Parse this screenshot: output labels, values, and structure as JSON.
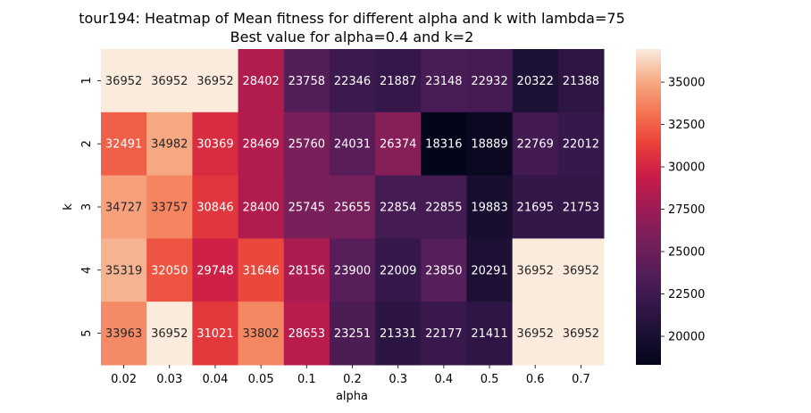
{
  "chart_data": {
    "type": "heatmap",
    "title": "tour194: Heatmap of Mean fitness for different alpha and k with lambda=75",
    "subtitle": "Best value for alpha=0.4 and k=2",
    "xlabel": "alpha",
    "ylabel": "k",
    "x_categories": [
      "0.02",
      "0.03",
      "0.04",
      "0.05",
      "0.1",
      "0.2",
      "0.3",
      "0.4",
      "0.5",
      "0.6",
      "0.7"
    ],
    "y_categories": [
      "1",
      "2",
      "3",
      "4",
      "5"
    ],
    "values": [
      [
        36952,
        36952,
        36952,
        28402,
        23758,
        22346,
        21887,
        23148,
        22932,
        20322,
        21388
      ],
      [
        32491,
        34982,
        30369,
        28469,
        25760,
        24031,
        26374,
        18316,
        18889,
        22769,
        22012
      ],
      [
        34727,
        33757,
        30846,
        28400,
        25745,
        25655,
        22854,
        22855,
        19883,
        21695,
        21753
      ],
      [
        35319,
        32050,
        29748,
        31646,
        28156,
        23900,
        22009,
        23850,
        20291,
        36952,
        36952
      ],
      [
        33963,
        36952,
        31021,
        33802,
        28653,
        23251,
        21331,
        22177,
        21411,
        36952,
        36952
      ]
    ],
    "colorbar": {
      "colormap": "rocket",
      "vmin": 18316,
      "vmax": 36952,
      "ticks": [
        "35000",
        "32500",
        "30000",
        "27500",
        "25000",
        "22500",
        "20000"
      ]
    }
  }
}
